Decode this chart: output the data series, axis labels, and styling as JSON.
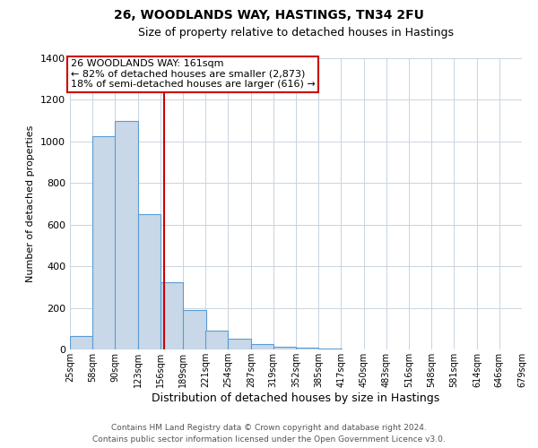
{
  "title": "26, WOODLANDS WAY, HASTINGS, TN34 2FU",
  "subtitle": "Size of property relative to detached houses in Hastings",
  "xlabel": "Distribution of detached houses by size in Hastings",
  "ylabel": "Number of detached properties",
  "bin_edges": [
    25,
    58,
    90,
    123,
    156,
    189,
    221,
    254,
    287,
    319,
    352,
    385,
    417,
    450,
    483,
    516,
    548,
    581,
    614,
    646,
    679
  ],
  "bin_counts": [
    65,
    1025,
    1100,
    650,
    325,
    190,
    90,
    50,
    25,
    15,
    10,
    5,
    0,
    0,
    0,
    0,
    0,
    0,
    0,
    0
  ],
  "bar_color": "#c8d8e8",
  "bar_edge_color": "#5b9bd5",
  "vline_x": 161,
  "vline_color": "#cc0000",
  "annotation_title": "26 WOODLANDS WAY: 161sqm",
  "annotation_line1": "← 82% of detached houses are smaller (2,873)",
  "annotation_line2": "18% of semi-detached houses are larger (616) →",
  "annotation_box_color": "#cc0000",
  "annotation_box_fill": "#ffffff",
  "ylim": [
    0,
    1400
  ],
  "yticks": [
    0,
    200,
    400,
    600,
    800,
    1000,
    1200,
    1400
  ],
  "xtick_labels": [
    "25sqm",
    "58sqm",
    "90sqm",
    "123sqm",
    "156sqm",
    "189sqm",
    "221sqm",
    "254sqm",
    "287sqm",
    "319sqm",
    "352sqm",
    "385sqm",
    "417sqm",
    "450sqm",
    "483sqm",
    "516sqm",
    "548sqm",
    "581sqm",
    "614sqm",
    "646sqm",
    "679sqm"
  ],
  "footer_line1": "Contains HM Land Registry data © Crown copyright and database right 2024.",
  "footer_line2": "Contains public sector information licensed under the Open Government Licence v3.0.",
  "background_color": "#ffffff",
  "grid_color": "#c8d4e0",
  "title_fontsize": 10,
  "subtitle_fontsize": 9,
  "ylabel_fontsize": 8,
  "xlabel_fontsize": 9,
  "ytick_fontsize": 8,
  "xtick_fontsize": 7,
  "ann_fontsize": 8,
  "footer_fontsize": 6.5
}
